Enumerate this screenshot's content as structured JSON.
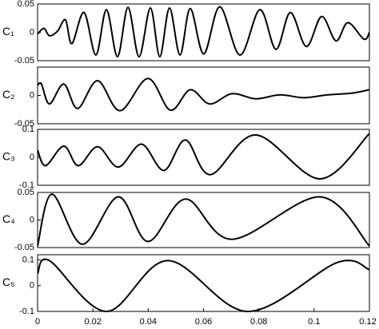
{
  "chart_data": [
    {
      "type": "line",
      "ylabel": "C₁",
      "color": "#000000",
      "x": [
        0,
        0.0023,
        0.0043,
        0.0072,
        0.0101,
        0.0124,
        0.0168,
        0.0211,
        0.0249,
        0.0289,
        0.0327,
        0.0367,
        0.0408,
        0.0442,
        0.0477,
        0.0515,
        0.0552,
        0.0601,
        0.0659,
        0.0732,
        0.0804,
        0.0862,
        0.0914,
        0.0972,
        0.1027,
        0.1079,
        0.1122,
        0.118,
        0.12
      ],
      "values": [
        -0.003,
        0.007,
        -0.006,
        0.002,
        0.022,
        -0.02,
        0.035,
        -0.04,
        0.04,
        -0.043,
        0.044,
        -0.043,
        0.043,
        -0.043,
        0.043,
        -0.04,
        0.042,
        -0.038,
        0.045,
        -0.04,
        0.04,
        -0.03,
        0.035,
        -0.025,
        0.028,
        -0.015,
        0.017,
        -0.012,
        0.0
      ],
      "ylim": [
        -0.05,
        0.05
      ],
      "yticks": [
        -0.05,
        0,
        0.05
      ]
    },
    {
      "type": "line",
      "ylabel": "C₂",
      "color": "#000000",
      "x": [
        0,
        0.0014,
        0.0043,
        0.0095,
        0.0145,
        0.0217,
        0.0298,
        0.0399,
        0.048,
        0.0552,
        0.0622,
        0.0703,
        0.0789,
        0.0876,
        0.0963,
        0.1049,
        0.1137,
        0.12
      ],
      "values": [
        0.018,
        0.02,
        -0.015,
        0.02,
        -0.023,
        0.026,
        -0.027,
        0.03,
        -0.026,
        0.01,
        -0.015,
        0.003,
        -0.006,
        0.001,
        -0.004,
        0.001,
        0.004,
        0.01
      ],
      "ylim": [
        -0.05,
        0.05
      ],
      "yticks": [
        -0.05,
        0
      ]
    },
    {
      "type": "line",
      "ylabel": "C₃",
      "color": "#000000",
      "x": [
        0,
        0.0029,
        0.0095,
        0.0147,
        0.0217,
        0.0292,
        0.0376,
        0.0457,
        0.0535,
        0.0625,
        0.0789,
        0.1021,
        0.12
      ],
      "values": [
        0.026,
        -0.03,
        0.04,
        -0.03,
        0.038,
        -0.035,
        0.047,
        -0.047,
        0.062,
        -0.062,
        0.08,
        -0.077,
        0.085
      ],
      "ylim": [
        -0.1,
        0.1
      ],
      "yticks": [
        -0.1,
        0,
        0.1
      ]
    },
    {
      "type": "line",
      "ylabel": "C₄",
      "color": "#000000",
      "x": [
        0,
        0.0052,
        0.0162,
        0.0292,
        0.0399,
        0.0535,
        0.0703,
        0.1021,
        0.12
      ],
      "values": [
        -0.047,
        0.047,
        -0.044,
        0.042,
        -0.039,
        0.038,
        -0.035,
        0.042,
        -0.047
      ],
      "ylim": [
        -0.05,
        0.05
      ],
      "yticks": [
        -0.05,
        0,
        0.05
      ]
    },
    {
      "type": "line",
      "ylabel": "C₅",
      "color": "#000000",
      "x": [
        0,
        0.0043,
        0.0249,
        0.0471,
        0.076,
        0.1084,
        0.12
      ],
      "values": [
        0.047,
        0.097,
        -0.1,
        0.097,
        -0.1,
        0.09,
        0.062
      ],
      "ylim": [
        -0.1,
        0.12
      ],
      "yticks": [
        -0.1,
        0,
        0.1
      ],
      "xlim": [
        0,
        0.12
      ],
      "xticks": [
        0,
        0.02,
        0.04,
        0.06,
        0.08,
        0.1,
        0.12
      ]
    }
  ]
}
